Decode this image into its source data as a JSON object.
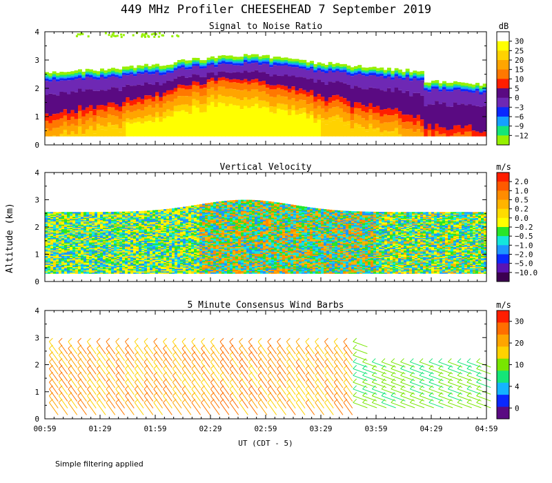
{
  "figure": {
    "title": "449 MHz Profiler CHEESEHEAD  7 September 2019",
    "ylabel": "Altitude (km)",
    "xlabel": "UT  (CDT - 5)",
    "footnote": "Simple filtering applied",
    "x_ticks": [
      "00:59",
      "01:29",
      "01:59",
      "02:29",
      "02:59",
      "03:29",
      "03:59",
      "04:29",
      "04:59"
    ],
    "y_ticks": [
      "0",
      "1",
      "2",
      "3",
      "4"
    ]
  },
  "chart_data": [
    {
      "type": "heatmap",
      "title": "Signal to Noise Ratio",
      "units": "dB",
      "xlim": [
        "00:59",
        "04:59"
      ],
      "ylim": [
        0,
        4
      ],
      "colorbar": {
        "labels": [
          "30",
          "25",
          "20",
          "15",
          "10",
          "5",
          "0",
          "−3",
          "−6",
          "−9",
          "−12"
        ],
        "colors": [
          "#ffffff",
          "#ffff00",
          "#ffd200",
          "#ffa500",
          "#ff7800",
          "#ff1e00",
          "#5a0a82",
          "#6e28b4",
          "#0a28ff",
          "#14a0ff",
          "#14e678",
          "#96f000"
        ]
      }
    },
    {
      "type": "heatmap",
      "title": "Vertical Velocity",
      "units": "m/s",
      "xlim": [
        "00:59",
        "04:59"
      ],
      "ylim": [
        0,
        4
      ],
      "colorbar": {
        "labels": [
          "2.0",
          "1.0",
          "0.5",
          "0.2",
          "0.0",
          "−0.2",
          "−0.5",
          "−1.0",
          "−2.0",
          "−5.0",
          "−10.0"
        ],
        "colors": [
          "#ff1e00",
          "#ff5a00",
          "#ff8c00",
          "#ffb400",
          "#ffdc00",
          "#ffff00",
          "#28e628",
          "#14e6dc",
          "#1e96ff",
          "#0a28ff",
          "#5a14b4",
          "#3c0050"
        ]
      }
    },
    {
      "type": "scatter",
      "title": "5 Minute Consensus Wind Barbs",
      "units": "m/s",
      "xlim": [
        "00:59",
        "04:59"
      ],
      "ylim": [
        0,
        4
      ],
      "colorbar": {
        "labels": [
          "30",
          "20",
          "10",
          "4",
          "0"
        ],
        "colors": [
          "#ff1e00",
          "#ff6e00",
          "#ffa500",
          "#ffd200",
          "#78e600",
          "#14e678",
          "#14b4ff",
          "#0a28ff",
          "#5a0a82"
        ]
      }
    }
  ]
}
